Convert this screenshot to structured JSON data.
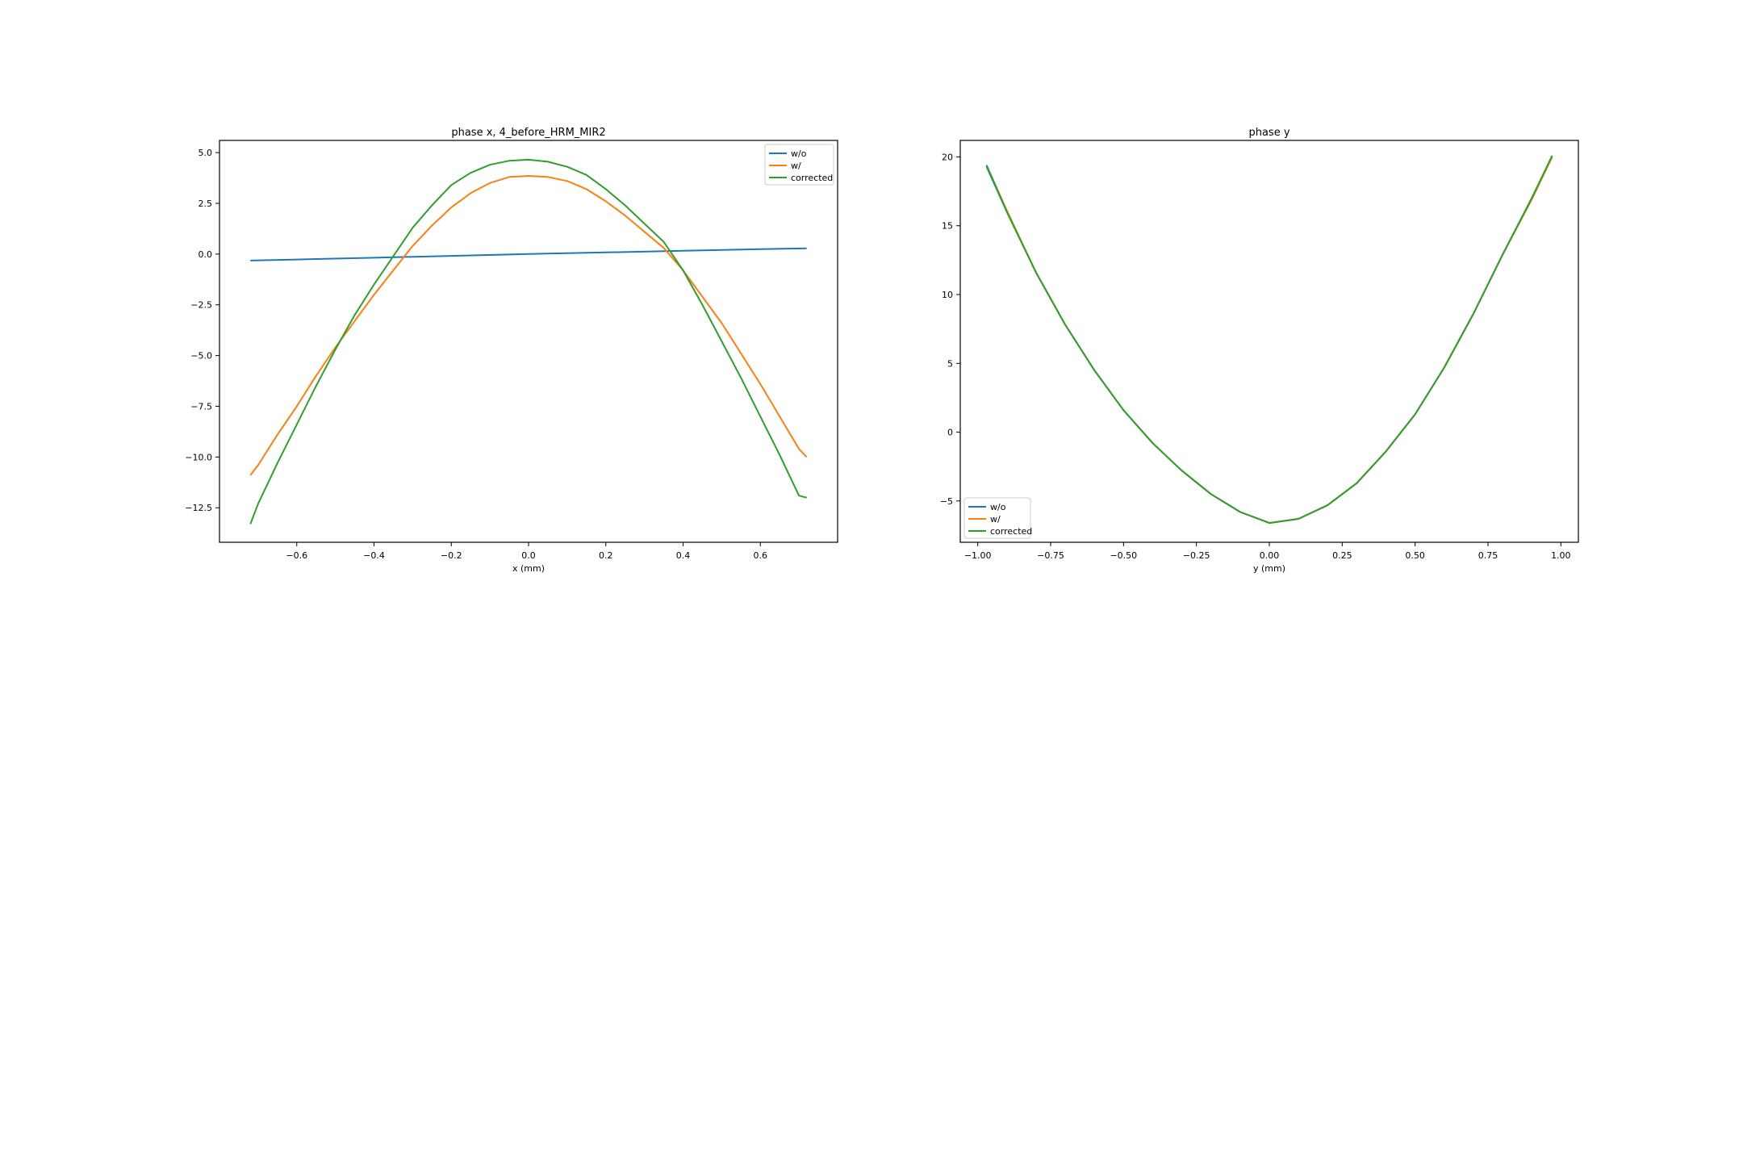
{
  "chart_data": [
    {
      "type": "line",
      "title": "phase x, 4_before_HRM_MIR2",
      "xlabel": "x (mm)",
      "ylabel": "",
      "xlim": [
        -0.8,
        0.8
      ],
      "ylim": [
        -14.2,
        5.6
      ],
      "xticks": [
        -0.6,
        -0.4,
        -0.2,
        0.0,
        0.2,
        0.4,
        0.6
      ],
      "xtick_labels": [
        "−0.6",
        "−0.4",
        "−0.2",
        "0.0",
        "0.2",
        "0.4",
        "0.6"
      ],
      "yticks": [
        5.0,
        2.5,
        0.0,
        -2.5,
        -5.0,
        -7.5,
        -10.0,
        -12.5
      ],
      "ytick_labels": [
        "5.0",
        "2.5",
        "0.0",
        "−2.5",
        "−5.0",
        "−7.5",
        "−10.0",
        "−12.5"
      ],
      "legend_position": "top-right",
      "grid": false,
      "series": [
        {
          "name": "w/o",
          "color": "#1f77b4",
          "x": [
            -0.72,
            -0.6,
            -0.4,
            -0.2,
            0.0,
            0.2,
            0.4,
            0.6,
            0.72
          ],
          "y": [
            -0.32,
            -0.27,
            -0.18,
            -0.09,
            0.0,
            0.08,
            0.16,
            0.24,
            0.28
          ]
        },
        {
          "name": "w/",
          "color": "#ff7f0e",
          "x": [
            -0.72,
            -0.7,
            -0.65,
            -0.6,
            -0.55,
            -0.5,
            -0.45,
            -0.4,
            -0.35,
            -0.3,
            -0.25,
            -0.2,
            -0.15,
            -0.1,
            -0.05,
            0.0,
            0.05,
            0.1,
            0.15,
            0.2,
            0.25,
            0.3,
            0.35,
            0.4,
            0.45,
            0.5,
            0.55,
            0.6,
            0.65,
            0.7,
            0.72
          ],
          "y": [
            -10.9,
            -10.4,
            -8.9,
            -7.5,
            -6.0,
            -4.6,
            -3.3,
            -2.0,
            -0.8,
            0.4,
            1.4,
            2.3,
            3.0,
            3.5,
            3.8,
            3.85,
            3.8,
            3.6,
            3.2,
            2.6,
            1.9,
            1.1,
            0.3,
            -0.8,
            -2.1,
            -3.4,
            -4.9,
            -6.4,
            -8.0,
            -9.6,
            -10.0
          ]
        },
        {
          "name": "corrected",
          "color": "#2ca02c",
          "x": [
            -0.72,
            -0.7,
            -0.65,
            -0.6,
            -0.55,
            -0.5,
            -0.45,
            -0.4,
            -0.35,
            -0.3,
            -0.25,
            -0.2,
            -0.15,
            -0.1,
            -0.05,
            0.0,
            0.05,
            0.1,
            0.15,
            0.2,
            0.25,
            0.3,
            0.35,
            0.4,
            0.45,
            0.5,
            0.55,
            0.6,
            0.65,
            0.7,
            0.72
          ],
          "y": [
            -13.3,
            -12.3,
            -10.3,
            -8.4,
            -6.5,
            -4.7,
            -3.0,
            -1.5,
            -0.1,
            1.3,
            2.4,
            3.4,
            4.0,
            4.4,
            4.6,
            4.65,
            4.55,
            4.3,
            3.9,
            3.2,
            2.4,
            1.5,
            0.6,
            -0.8,
            -2.5,
            -4.3,
            -6.1,
            -8.0,
            -9.9,
            -11.9,
            -12.0
          ]
        }
      ]
    },
    {
      "type": "line",
      "title": "phase y",
      "xlabel": "y (mm)",
      "ylabel": "",
      "xlim": [
        -1.06,
        1.06
      ],
      "ylim": [
        -8.0,
        21.2
      ],
      "xticks": [
        -1.0,
        -0.75,
        -0.5,
        -0.25,
        0.0,
        0.25,
        0.5,
        0.75,
        1.0
      ],
      "xtick_labels": [
        "−1.00",
        "−0.75",
        "−0.50",
        "−0.25",
        "0.00",
        "0.25",
        "0.50",
        "0.75",
        "1.00"
      ],
      "yticks": [
        20,
        15,
        10,
        5,
        0,
        -5
      ],
      "ytick_labels": [
        "20",
        "15",
        "10",
        "5",
        "0",
        "−5"
      ],
      "legend_position": "bottom-left",
      "grid": false,
      "series": [
        {
          "name": "w/o",
          "color": "#1f77b4",
          "x": [
            -0.97,
            -0.9,
            -0.8,
            -0.7,
            -0.6,
            -0.5,
            -0.4,
            -0.3,
            -0.2,
            -0.1,
            0.0,
            0.1,
            0.2,
            0.3,
            0.4,
            0.5,
            0.6,
            0.7,
            0.8,
            0.9,
            0.97
          ],
          "y": [
            19.3,
            16.0,
            11.6,
            7.8,
            4.5,
            1.6,
            -0.8,
            -2.8,
            -4.5,
            -5.8,
            -6.6,
            -6.3,
            -5.3,
            -3.7,
            -1.4,
            1.3,
            4.7,
            8.6,
            12.9,
            17.0,
            20.0
          ]
        },
        {
          "name": "w/",
          "color": "#ff7f0e",
          "x": [
            -0.97,
            -0.9,
            -0.8,
            -0.7,
            -0.6,
            -0.5,
            -0.4,
            -0.3,
            -0.2,
            -0.1,
            0.0,
            0.1,
            0.2,
            0.3,
            0.4,
            0.5,
            0.6,
            0.7,
            0.8,
            0.9,
            0.97
          ],
          "y": [
            19.4,
            16.1,
            11.6,
            7.8,
            4.5,
            1.6,
            -0.8,
            -2.8,
            -4.5,
            -5.8,
            -6.6,
            -6.3,
            -5.3,
            -3.7,
            -1.4,
            1.3,
            4.7,
            8.6,
            12.9,
            16.9,
            20.0
          ]
        },
        {
          "name": "corrected",
          "color": "#2ca02c",
          "x": [
            -0.97,
            -0.9,
            -0.8,
            -0.7,
            -0.6,
            -0.5,
            -0.4,
            -0.3,
            -0.2,
            -0.1,
            0.0,
            0.1,
            0.2,
            0.3,
            0.4,
            0.5,
            0.6,
            0.7,
            0.8,
            0.9,
            0.97
          ],
          "y": [
            19.4,
            16.0,
            11.6,
            7.8,
            4.5,
            1.6,
            -0.8,
            -2.8,
            -4.5,
            -5.8,
            -6.6,
            -6.3,
            -5.3,
            -3.7,
            -1.4,
            1.3,
            4.7,
            8.6,
            12.9,
            17.0,
            20.1
          ]
        }
      ]
    }
  ]
}
